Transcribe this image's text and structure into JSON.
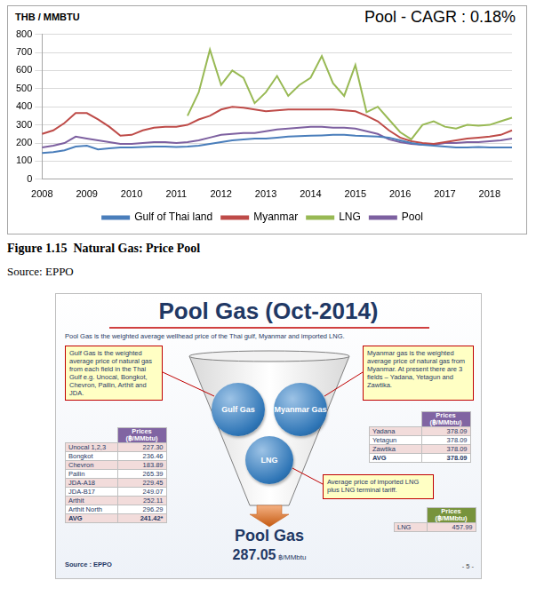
{
  "chart_data": {
    "type": "line",
    "title": "Pool - CAGR : 0.18%",
    "y_label": "THB / MMBTU",
    "categories": [
      "2008",
      null,
      null,
      null,
      "2009",
      null,
      null,
      null,
      "2010",
      null,
      null,
      null,
      "2011",
      null,
      null,
      null,
      "2012",
      null,
      null,
      null,
      "2013",
      null,
      null,
      null,
      "2014",
      null,
      null,
      null,
      "2015",
      null,
      null,
      null,
      "2016",
      null,
      null,
      null,
      "2017",
      null,
      null,
      null,
      "2018",
      null,
      null
    ],
    "series": [
      {
        "name": "Gulf of Thai land",
        "color": "#4a7ebb",
        "values": [
          145,
          150,
          160,
          180,
          185,
          165,
          170,
          175,
          175,
          178,
          180,
          180,
          178,
          180,
          185,
          195,
          205,
          215,
          220,
          225,
          225,
          230,
          235,
          238,
          240,
          242,
          245,
          245,
          240,
          238,
          235,
          230,
          215,
          200,
          190,
          185,
          180,
          175,
          175,
          178,
          175,
          175,
          175
        ]
      },
      {
        "name": "Myanmar",
        "color": "#be4b48",
        "values": [
          250,
          270,
          310,
          365,
          365,
          330,
          290,
          240,
          245,
          270,
          285,
          290,
          290,
          300,
          330,
          350,
          385,
          400,
          395,
          385,
          375,
          380,
          385,
          385,
          385,
          385,
          385,
          380,
          375,
          350,
          320,
          270,
          230,
          210,
          200,
          195,
          205,
          215,
          225,
          230,
          235,
          245,
          270
        ]
      },
      {
        "name": "LNG",
        "color": "#98b954",
        "values": [
          null,
          null,
          null,
          null,
          null,
          null,
          null,
          null,
          null,
          null,
          null,
          null,
          null,
          350,
          480,
          715,
          520,
          600,
          560,
          420,
          480,
          570,
          460,
          520,
          560,
          680,
          530,
          460,
          630,
          370,
          400,
          330,
          260,
          220,
          300,
          320,
          290,
          280,
          300,
          295,
          300,
          320,
          340
        ]
      },
      {
        "name": "Pool",
        "color": "#7d60a0",
        "values": [
          175,
          185,
          200,
          235,
          225,
          215,
          205,
          195,
          195,
          200,
          205,
          205,
          200,
          205,
          215,
          230,
          245,
          250,
          255,
          255,
          265,
          275,
          280,
          285,
          290,
          290,
          285,
          285,
          280,
          265,
          250,
          220,
          205,
          195,
          190,
          190,
          200,
          200,
          205,
          205,
          210,
          215,
          225
        ]
      }
    ],
    "ylim": [
      0,
      800
    ],
    "yticks": [
      0,
      100,
      200,
      300,
      400,
      500,
      600,
      700,
      800
    ],
    "grid": true,
    "legend": "bottom"
  },
  "caption": "Figure 1.15  Natural Gas: Price Pool",
  "source": "Source: EPPO",
  "diagram": {
    "title": "Pool Gas (Oct-2014)",
    "subtitle": "Pool Gas is the weighted average wellhead price of the Thai gulf, Myanmar and imported LNG.",
    "circles": [
      "Gulf Gas",
      "Myanmar Gas",
      "LNG"
    ],
    "callouts": {
      "gulf": "Gulf Gas is the weighted average price of natural gas from each field in the Thai Gulf e.g. Unocal, Bongkot, Chevron, Pailin, Arthit and JDA.",
      "myanmar": "Myanmar gas is the weighted average price of natural gas from Myanmar. At present there are 3 fields – Yadana, Yetagun and Zawtika.",
      "lng": "Average price of imported LNG plus LNG terminal tariff."
    },
    "tables": {
      "gulf": {
        "header": "Prices (฿/MMbtu)",
        "rows": [
          [
            "Unocal 1,2,3",
            "227.30"
          ],
          [
            "Bongkot",
            "236.46"
          ],
          [
            "Chevron",
            "183.89"
          ],
          [
            "Pailin",
            "265.39"
          ],
          [
            "JDA-A18",
            "229.45"
          ],
          [
            "JDA-B17",
            "249.07"
          ],
          [
            "Arthit",
            "252.11"
          ],
          [
            "Arthit North",
            "296.29"
          ],
          [
            "AVG",
            "241.42*"
          ]
        ]
      },
      "myanmar": {
        "header": "Prices (฿/MMbtu)",
        "rows": [
          [
            "Yadana",
            "378.09"
          ],
          [
            "Yetagun",
            "378.09"
          ],
          [
            "Zawtika",
            "378.09"
          ],
          [
            "AVG",
            "378.09"
          ]
        ]
      },
      "lng": {
        "header": "Prices (฿/MMbtu)",
        "rows": [
          [
            "LNG",
            "457.99"
          ]
        ]
      }
    },
    "result": {
      "label": "Pool Gas",
      "value": "287.05",
      "unit": "฿/MMbtu"
    },
    "source": "Source : EPPO",
    "page": "- 5 -"
  }
}
